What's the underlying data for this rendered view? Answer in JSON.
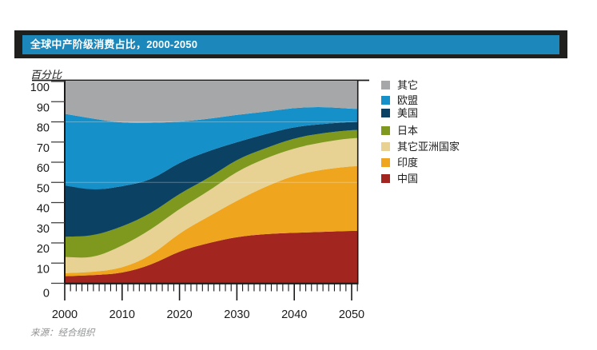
{
  "header": {
    "title": "全球中产阶级消费占比，2000-2050"
  },
  "y_axis_unit_label": "百分比",
  "source": "来源：经合组织",
  "colors": {
    "title_bar_background": "#1b87ba",
    "title_bar_frame": "#1f1f1d",
    "title_text": "#ffffff",
    "axis": "#1a1a1a",
    "axis_tick_label": "#1a1a1a",
    "source_text": "#8f9193"
  },
  "chart_data": {
    "type": "area",
    "stacked": true,
    "title": "全球中产阶级消费占比，2000-2050",
    "xlabel": "",
    "ylabel": "百分比",
    "xlim": [
      2000,
      2051
    ],
    "ylim": [
      0,
      100
    ],
    "x": [
      2000,
      2005,
      2010,
      2015,
      2020,
      2025,
      2030,
      2035,
      2040,
      2045,
      2050
    ],
    "x_major_ticks": [
      2000,
      2010,
      2020,
      2030,
      2040,
      2050
    ],
    "x_tick_labels": [
      "2000",
      "2010",
      "2020",
      "2030",
      "2040",
      "2050"
    ],
    "x_minor_tick_interval_years": 1,
    "y_ticks": [
      0,
      10,
      20,
      30,
      40,
      50,
      60,
      70,
      80,
      90,
      100
    ],
    "y_tick_labels": [
      "0",
      "10",
      "20",
      "30",
      "40",
      "50",
      "60",
      "70",
      "80",
      "90",
      "100"
    ],
    "faint_gridlines_at": [
      50,
      80
    ],
    "legend_position": "right",
    "legend_order_top_to_bottom": [
      "其它",
      "欧盟",
      "美国",
      "日本",
      "其它亚洲国家",
      "印度",
      "中国"
    ],
    "series_bottom_to_top": [
      {
        "name": "中国",
        "color": "#a3251f",
        "values": [
          3.5,
          4,
          5,
          9,
          16,
          20,
          23,
          24.5,
          25,
          25.5,
          26
        ]
      },
      {
        "name": "印度",
        "color": "#efa51e",
        "values": [
          1.5,
          1.5,
          2.5,
          4.5,
          9,
          13,
          18,
          23.5,
          28.5,
          31,
          32
        ]
      },
      {
        "name": "其它亚洲国家",
        "color": "#e7d294",
        "values": [
          8,
          7,
          11,
          13,
          12,
          12.5,
          14.5,
          14,
          13.5,
          13.5,
          14
        ]
      },
      {
        "name": "日本",
        "color": "#7e991e",
        "values": [
          10,
          11,
          9.5,
          8,
          7.5,
          6.5,
          6,
          5,
          5,
          4.5,
          4
        ]
      },
      {
        "name": "美国",
        "color": "#0b4264",
        "values": [
          25.5,
          22.5,
          20,
          16.5,
          15.5,
          13.5,
          8.5,
          7,
          5.5,
          4.5,
          4
        ]
      },
      {
        "name": "欧盟",
        "color": "#1590c8",
        "values": [
          35.5,
          35.5,
          31.5,
          28.5,
          20,
          16,
          13.5,
          11,
          9.5,
          8.5,
          6.5
        ]
      },
      {
        "name": "其它",
        "color": "#a6a7a9",
        "values": [
          16,
          18.5,
          20.5,
          20.5,
          20,
          18.5,
          16.5,
          15,
          13,
          12.5,
          13.5
        ]
      }
    ]
  }
}
